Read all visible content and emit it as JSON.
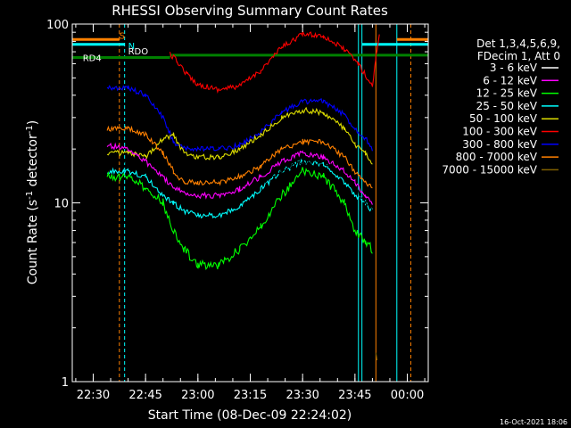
{
  "chart_data": {
    "type": "line",
    "title": "RHESSI Observing Summary Count Rates",
    "xlabel": "Start Time (08-Dec-09 22:24:02)",
    "ylabel": "Count Rate (s",
    "ylabel_sup": "-1",
    "ylabel_mid": " detector",
    "ylabel_end": ")",
    "footer": "16-Oct-2021 18:06",
    "y_scale": "log",
    "ylim": [
      1,
      100
    ],
    "y_ticks": [
      {
        "value": 1,
        "label": "1"
      },
      {
        "value": 10,
        "label": "10"
      },
      {
        "value": 100,
        "label": "100"
      }
    ],
    "xlim": [
      "22:24",
      "00:06"
    ],
    "x_ticks": [
      {
        "value": "22:30",
        "label": "22:30"
      },
      {
        "value": "22:45",
        "label": "22:45"
      },
      {
        "value": "23:00",
        "label": "23:00"
      },
      {
        "value": "23:15",
        "label": "23:15"
      },
      {
        "value": "23:30",
        "label": "23:30"
      },
      {
        "value": "23:45",
        "label": "23:45"
      },
      {
        "value": "00:00",
        "label": "00:00"
      }
    ],
    "legend": {
      "placement": "right",
      "header": [
        "Det 1,3,4,5,6,9,",
        "FDecim 1, Att 0"
      ],
      "entries": [
        {
          "label": "3 - 6 keV",
          "color": "#000000"
        },
        {
          "label": "6 - 12 keV",
          "color": "#ff00ff"
        },
        {
          "label": "12 - 25 keV",
          "color": "#00ff00"
        },
        {
          "label": "25 - 50 keV",
          "color": "#00ffff"
        },
        {
          "label": "50 - 100 keV",
          "color": "#dddd00"
        },
        {
          "label": "100 - 300 keV",
          "color": "#ff0000"
        },
        {
          "label": "300 - 800 keV",
          "color": "#0000ff"
        },
        {
          "label": "800 - 7000 keV",
          "color": "#ff8000"
        },
        {
          "label": "7000 - 15000 keV",
          "color": "#806000"
        }
      ]
    },
    "flags": [
      {
        "label": "S",
        "color": "#ff8000",
        "y": 82
      },
      {
        "label": "N",
        "color": "#00ffff",
        "y": 77
      },
      {
        "label": "RDO",
        "color": "#008000",
        "y": 67
      },
      {
        "label": "RD4",
        "color": "#008000",
        "y": 65
      }
    ],
    "vlines": [
      {
        "time": "22:24",
        "color": "#00ffff",
        "dash": false
      },
      {
        "time": "22:37.5",
        "color": "#ff8000",
        "dash": true
      },
      {
        "time": "22:39",
        "color": "#00ffff",
        "dash": true
      },
      {
        "time": "23:46",
        "color": "#00ffff",
        "dash": false
      },
      {
        "time": "23:47",
        "color": "#00ffff",
        "dash": false
      },
      {
        "time": "23:51",
        "color": "#ff8000",
        "dash": false
      },
      {
        "time": "23:57",
        "color": "#00ffff",
        "dash": false
      },
      {
        "time": "00:01",
        "color": "#ff8000",
        "dash": true
      }
    ],
    "series": [
      {
        "name": "300 - 800 keV",
        "color": "#0000ff",
        "points": [
          [
            "22:34",
            44
          ],
          [
            "22:40",
            44
          ],
          [
            "22:45",
            40
          ],
          [
            "22:50",
            30
          ],
          [
            "22:53",
            22
          ],
          [
            "22:56",
            20
          ],
          [
            "23:00",
            20
          ],
          [
            "23:06",
            20
          ],
          [
            "23:12",
            21
          ],
          [
            "23:18",
            25
          ],
          [
            "23:24",
            32
          ],
          [
            "23:30",
            37
          ],
          [
            "23:36",
            37
          ],
          [
            "23:42",
            31
          ],
          [
            "23:45",
            26
          ],
          [
            "23:48",
            23
          ],
          [
            "23:50",
            20
          ]
        ]
      },
      {
        "name": "100 - 300 keV",
        "color": "#ff0000",
        "points": [
          [
            "22:52",
            68
          ],
          [
            "22:54",
            62
          ],
          [
            "22:57",
            52
          ],
          [
            "23:00",
            46
          ],
          [
            "23:06",
            43
          ],
          [
            "23:12",
            45
          ],
          [
            "23:18",
            55
          ],
          [
            "23:24",
            74
          ],
          [
            "23:30",
            88
          ],
          [
            "23:36",
            86
          ],
          [
            "23:42",
            72
          ],
          [
            "23:46",
            60
          ],
          [
            "23:49",
            48
          ],
          [
            "23:50",
            45
          ],
          [
            "23:51",
            65
          ],
          [
            "23:52",
            90
          ]
        ]
      },
      {
        "name": "800 - 7000 keV",
        "color": "#ff8000",
        "points": [
          [
            "22:34",
            26
          ],
          [
            "22:40",
            26
          ],
          [
            "22:45",
            24
          ],
          [
            "22:50",
            19
          ],
          [
            "22:53",
            15
          ],
          [
            "22:56",
            13
          ],
          [
            "23:00",
            13
          ],
          [
            "23:06",
            13
          ],
          [
            "23:12",
            14
          ],
          [
            "23:18",
            16
          ],
          [
            "23:24",
            20
          ],
          [
            "23:30",
            22
          ],
          [
            "23:36",
            22
          ],
          [
            "23:42",
            18
          ],
          [
            "23:45",
            15
          ],
          [
            "23:48",
            13
          ],
          [
            "23:50",
            12
          ]
        ]
      },
      {
        "name": "50 - 100 keV",
        "color": "#dddd00",
        "points": [
          [
            "22:34",
            19
          ],
          [
            "22:40",
            19
          ],
          [
            "22:45",
            18
          ],
          [
            "22:50",
            23
          ],
          [
            "22:53",
            24
          ],
          [
            "22:56",
            19
          ],
          [
            "23:00",
            18
          ],
          [
            "23:06",
            18
          ],
          [
            "23:12",
            20
          ],
          [
            "23:18",
            24
          ],
          [
            "23:24",
            30
          ],
          [
            "23:30",
            33
          ],
          [
            "23:36",
            32
          ],
          [
            "23:42",
            26
          ],
          [
            "23:45",
            21
          ],
          [
            "23:48",
            19
          ],
          [
            "23:50",
            16
          ]
        ]
      },
      {
        "name": "6 - 12 keV",
        "color": "#ff00ff",
        "points": [
          [
            "22:34",
            21
          ],
          [
            "22:40",
            20
          ],
          [
            "22:45",
            17
          ],
          [
            "22:50",
            14
          ],
          [
            "22:53",
            12
          ],
          [
            "22:56",
            11.5
          ],
          [
            "23:00",
            11
          ],
          [
            "23:06",
            11
          ],
          [
            "23:12",
            12
          ],
          [
            "23:18",
            14
          ],
          [
            "23:24",
            17
          ],
          [
            "23:30",
            19
          ],
          [
            "23:36",
            18
          ],
          [
            "23:42",
            15
          ],
          [
            "23:45",
            13
          ],
          [
            "23:48",
            11
          ],
          [
            "23:50",
            10
          ]
        ]
      },
      {
        "name": "3 - 6 keV",
        "color": "#000000",
        "points": [
          [
            "22:34",
            17
          ],
          [
            "22:40",
            17
          ],
          [
            "22:45",
            15
          ],
          [
            "22:50",
            12
          ],
          [
            "22:53",
            11
          ],
          [
            "22:56",
            10.5
          ],
          [
            "23:00",
            10
          ],
          [
            "23:06",
            10
          ],
          [
            "23:12",
            11
          ],
          [
            "23:18",
            13
          ],
          [
            "23:24",
            15
          ],
          [
            "23:30",
            17
          ],
          [
            "23:36",
            17
          ],
          [
            "23:42",
            14
          ],
          [
            "23:45",
            12
          ],
          [
            "23:48",
            10
          ],
          [
            "23:50",
            9
          ]
        ]
      },
      {
        "name": "25 - 50 keV",
        "color": "#00ffff",
        "points": [
          [
            "22:34",
            15
          ],
          [
            "22:40",
            15
          ],
          [
            "22:45",
            14
          ],
          [
            "22:50",
            11
          ],
          [
            "22:53",
            10
          ],
          [
            "22:56",
            9
          ],
          [
            "23:00",
            8.5
          ],
          [
            "23:06",
            8.5
          ],
          [
            "23:12",
            9.5
          ],
          [
            "23:18",
            12
          ],
          [
            "23:24",
            15
          ],
          [
            "23:30",
            17
          ],
          [
            "23:36",
            16.5
          ],
          [
            "23:42",
            13
          ],
          [
            "23:45",
            11
          ],
          [
            "23:48",
            10
          ],
          [
            "23:50",
            9
          ]
        ]
      },
      {
        "name": "12 - 25 keV",
        "color": "#00ff00",
        "points": [
          [
            "22:34",
            14
          ],
          [
            "22:40",
            14
          ],
          [
            "22:45",
            12
          ],
          [
            "22:50",
            10
          ],
          [
            "22:53",
            7
          ],
          [
            "22:56",
            5.5
          ],
          [
            "23:00",
            4.5
          ],
          [
            "23:06",
            4.5
          ],
          [
            "23:12",
            5.5
          ],
          [
            "23:18",
            7.5
          ],
          [
            "23:24",
            11
          ],
          [
            "23:30",
            15
          ],
          [
            "23:36",
            14
          ],
          [
            "23:42",
            10
          ],
          [
            "23:45",
            7
          ],
          [
            "23:48",
            6
          ],
          [
            "23:50",
            5.5
          ]
        ]
      },
      {
        "name": "7000 - 15000 keV",
        "color": "#806000",
        "points": [
          [
            "23:51",
            1.5
          ],
          [
            "23:51.5",
            1.2
          ]
        ]
      }
    ]
  }
}
